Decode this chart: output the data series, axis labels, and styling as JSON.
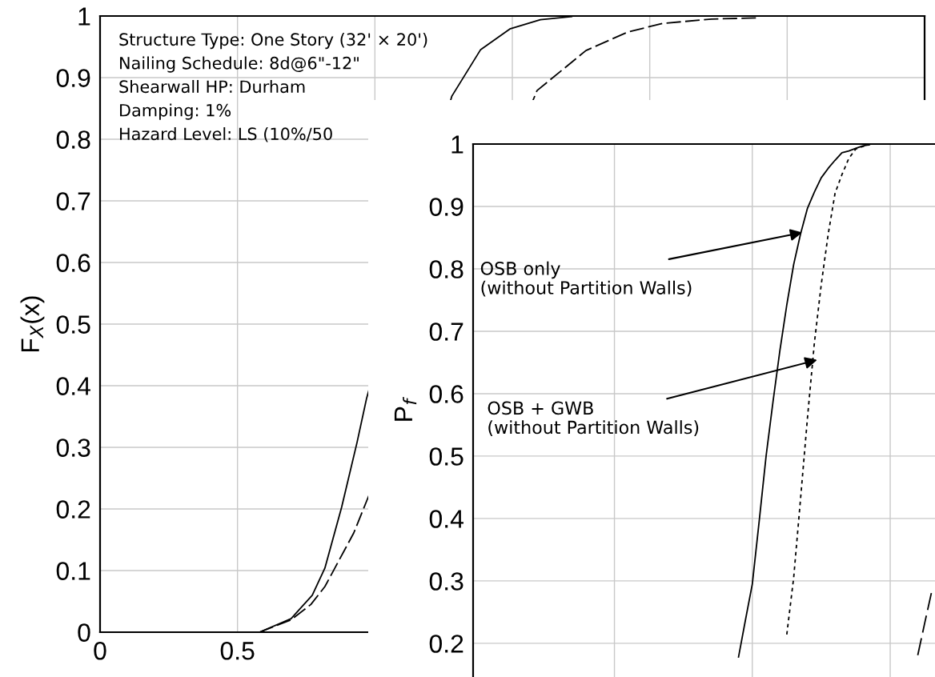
{
  "chart_data": [
    {
      "type": "line",
      "ylabel": "F$_{X}$(x)",
      "xlim": [
        0,
        3
      ],
      "ylim": [
        0,
        1
      ],
      "xticks": [
        0,
        0.5,
        {
          "value": 1,
          "label": null
        },
        {
          "value": 1.5,
          "label": null
        },
        {
          "value": 2,
          "label": null
        },
        {
          "value": 2.5,
          "label": null
        },
        {
          "value": 3,
          "label": null
        }
      ],
      "yticks": [
        0,
        0.1,
        0.2,
        0.3,
        0.4,
        0.5,
        0.6,
        0.7,
        0.8,
        0.9,
        1
      ],
      "grid": true,
      "annotations": [
        "Structure Type: One Story (32' × 20')",
        "Nailing Schedule: 8d@6\"-12\"",
        "Shearwall HP: Durham",
        "Damping: 1%",
        "Hazard Level: LS (10%/50"
      ],
      "series": [
        {
          "color": "#000000",
          "line_style": "solid",
          "x": [
            0.58,
            0.695,
            0.772,
            0.818,
            0.879,
            0.935,
            0.97,
            1.28,
            1.384,
            1.491,
            1.602,
            1.716
          ],
          "values": [
            0,
            0.022,
            0.06,
            0.104,
            0.203,
            0.308,
            0.38,
            0.87,
            0.945,
            0.979,
            0.994,
            0.999
          ]
        },
        {
          "color": "#000000",
          "line_style": "dashed",
          "x": [
            0.58,
            0.695,
            0.767,
            0.818,
            0.923,
            0.97,
            1.59,
            1.768,
            1.92,
            2.047,
            2.225,
            2.389
          ],
          "values": [
            0,
            0.02,
            0.045,
            0.074,
            0.161,
            0.213,
            0.879,
            0.944,
            0.974,
            0.988,
            0.995,
            0.997
          ]
        }
      ]
    },
    {
      "type": "line",
      "ylabel": "P$_{f}$",
      "ylim": [
        0.146,
        1
      ],
      "categories": [
        null,
        null,
        null,
        null,
        null,
        null,
        null,
        null,
        null,
        null,
        null,
        null,
        null,
        null,
        null,
        null,
        null,
        null,
        null,
        null,
        null,
        null,
        null,
        null,
        null,
        null,
        null,
        null,
        null,
        null,
        null,
        null,
        null,
        null,
        null,
        null,
        null,
        null,
        null,
        null,
        null,
        null,
        null,
        null,
        null,
        null,
        null,
        null,
        null,
        null,
        null,
        null,
        null,
        null,
        null,
        null,
        null,
        null,
        null,
        null,
        null,
        null,
        null,
        null,
        null,
        null,
        null
      ],
      "yticks": [
        0.2,
        0.3,
        0.4,
        0.5,
        0.6,
        0.7,
        0.8,
        0.9,
        1
      ],
      "grid": true,
      "annotations": [
        "OSB only\n(without Partition Walls)",
        "OSB + GWB\n(without Partition Walls)"
      ],
      "series": [
        {
          "color": "#000000",
          "line_style": "solid",
          "values": [
            null,
            null,
            null,
            null,
            null,
            null,
            null,
            null,
            null,
            null,
            null,
            null,
            null,
            null,
            null,
            null,
            null,
            null,
            null,
            null,
            null,
            null,
            null,
            null,
            null,
            null,
            null,
            null,
            null,
            null,
            null,
            null,
            null,
            null,
            null,
            null,
            null,
            null,
            0.178,
            0.237,
            0.295,
            0.396,
            0.5,
            0.587,
            0.669,
            0.742,
            0.807,
            0.856,
            0.897,
            0.923,
            0.946,
            0.961,
            0.974,
            0.986,
            0.989,
            0.993,
            0.997,
            0.999,
            null,
            null,
            null,
            null,
            null,
            null,
            null,
            null,
            null
          ]
        },
        {
          "color": "#000000",
          "line_style": "dotted",
          "values": [
            null,
            null,
            null,
            null,
            null,
            null,
            null,
            null,
            null,
            null,
            null,
            null,
            null,
            null,
            null,
            null,
            null,
            null,
            null,
            null,
            null,
            null,
            null,
            null,
            null,
            null,
            null,
            null,
            null,
            null,
            null,
            null,
            null,
            null,
            null,
            null,
            null,
            null,
            null,
            null,
            null,
            null,
            null,
            null,
            null,
            0.214,
            0.305,
            0.432,
            0.561,
            0.681,
            0.775,
            0.855,
            0.921,
            0.951,
            0.977,
            0.992,
            0.996,
            0.999,
            null,
            null,
            null,
            null,
            null,
            null,
            null,
            null,
            null
          ]
        },
        {
          "color": "#000000",
          "line_style": "dashed",
          "values": [
            null,
            null,
            null,
            null,
            null,
            null,
            null,
            null,
            null,
            null,
            null,
            null,
            null,
            null,
            null,
            null,
            null,
            null,
            null,
            null,
            null,
            null,
            null,
            null,
            null,
            null,
            null,
            null,
            null,
            null,
            null,
            null,
            null,
            null,
            null,
            null,
            null,
            null,
            null,
            null,
            null,
            null,
            null,
            null,
            null,
            null,
            null,
            null,
            null,
            null,
            null,
            null,
            null,
            null,
            null,
            null,
            null,
            null,
            null,
            null,
            null,
            null,
            null,
            null,
            0.181,
            0.232,
            0.282
          ]
        }
      ]
    }
  ]
}
